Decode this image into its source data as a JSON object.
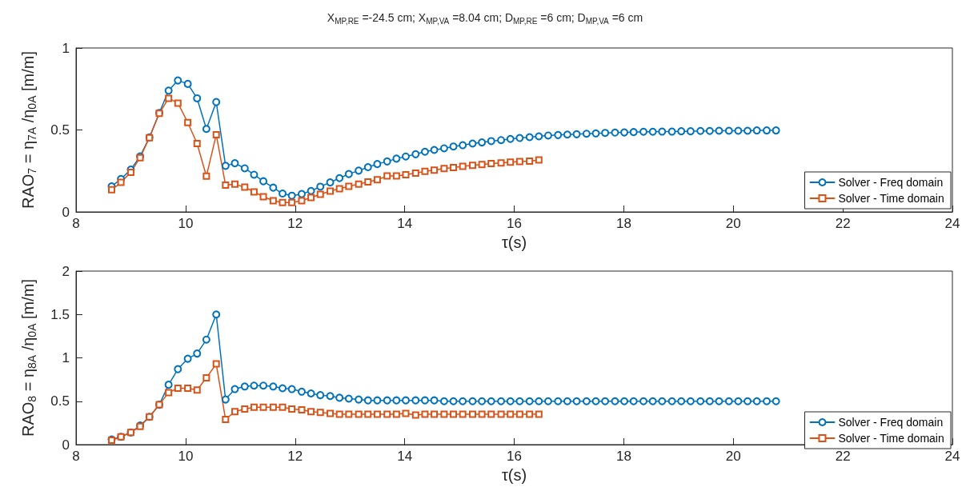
{
  "chart_data": [
    {
      "type": "line",
      "title": "X$_{MP,RE}$ =-24.5 cm; X$_{MP,VA}$ =8.04 cm; D$_{MP,RE}$ =6 cm; D$_{MP,VA}$ =6 cm",
      "xlabel": "τ(s)",
      "ylabel": "RAO$_{7}$ = η$_{7}$$_{A}$ /η$_{0}$$_{A}$ [m/m]",
      "x": [
        8.65,
        8.82,
        9.0,
        9.17,
        9.34,
        9.52,
        9.69,
        9.86,
        10.04,
        10.21,
        10.38,
        10.56,
        10.73,
        10.9,
        11.08,
        11.25,
        11.42,
        11.6,
        11.77,
        11.94,
        12.12,
        12.29,
        12.46,
        12.64,
        12.81,
        12.98,
        13.16,
        13.33,
        13.5,
        13.68,
        13.85,
        14.02,
        14.2,
        14.37,
        14.54,
        14.72,
        14.89,
        15.06,
        15.24,
        15.41,
        15.58,
        15.76,
        15.93,
        16.1,
        16.28,
        16.45,
        16.62,
        16.8,
        16.97,
        17.14,
        17.32,
        17.49,
        17.66,
        17.84,
        18.01,
        18.18,
        18.36,
        18.53,
        18.7,
        18.88,
        19.05,
        19.22,
        19.4,
        19.57,
        19.74,
        19.92,
        20.09,
        20.26,
        20.43,
        20.61,
        20.78
      ],
      "xlim": [
        8,
        24
      ],
      "xticks": [
        8,
        10,
        12,
        14,
        16,
        18,
        20,
        22,
        24
      ],
      "ylim": [
        0,
        1
      ],
      "yticks": [
        0,
        0.5,
        1
      ],
      "grid": false,
      "legend": "bottom right",
      "line_style": "solid",
      "series": [
        {
          "name": "Solver - Freq domain",
          "color": "#0072bd",
          "marker": "circle",
          "values": [
            0.156,
            0.201,
            0.258,
            0.339,
            0.455,
            0.604,
            0.74,
            0.802,
            0.781,
            0.693,
            0.506,
            0.67,
            0.281,
            0.297,
            0.266,
            0.227,
            0.187,
            0.148,
            0.112,
            0.099,
            0.109,
            0.128,
            0.154,
            0.18,
            0.206,
            0.231,
            0.252,
            0.273,
            0.292,
            0.308,
            0.325,
            0.338,
            0.352,
            0.367,
            0.378,
            0.388,
            0.399,
            0.407,
            0.417,
            0.424,
            0.432,
            0.438,
            0.445,
            0.451,
            0.456,
            0.461,
            0.466,
            0.469,
            0.472,
            0.474,
            0.477,
            0.479,
            0.482,
            0.484,
            0.485,
            0.487,
            0.489,
            0.489,
            0.49,
            0.49,
            0.492,
            0.492,
            0.494,
            0.494,
            0.495,
            0.495,
            0.495,
            0.495,
            0.497,
            0.497,
            0.497
          ]
        },
        {
          "name": "Solver - Time domain",
          "color": "#d95319",
          "marker": "square",
          "x": [
            8.65,
            8.82,
            9.0,
            9.17,
            9.34,
            9.52,
            9.69,
            9.86,
            10.04,
            10.21,
            10.38,
            10.56,
            10.73,
            10.9,
            11.08,
            11.25,
            11.42,
            11.6,
            11.77,
            11.94,
            12.12,
            12.29,
            12.46,
            12.64,
            12.81,
            12.98,
            13.16,
            13.33,
            13.5,
            13.68,
            13.85,
            14.02,
            14.2,
            14.37,
            14.54,
            14.72,
            14.89,
            15.06,
            15.24,
            15.41,
            15.58,
            15.76,
            15.93,
            16.1,
            16.28,
            16.45
          ],
          "values": [
            0.135,
            0.18,
            0.242,
            0.331,
            0.453,
            0.601,
            0.693,
            0.664,
            0.545,
            0.417,
            0.218,
            0.471,
            0.164,
            0.169,
            0.151,
            0.122,
            0.093,
            0.068,
            0.057,
            0.057,
            0.068,
            0.088,
            0.107,
            0.127,
            0.141,
            0.156,
            0.17,
            0.183,
            0.196,
            0.219,
            0.219,
            0.227,
            0.237,
            0.247,
            0.255,
            0.265,
            0.271,
            0.278,
            0.284,
            0.289,
            0.295,
            0.299,
            0.304,
            0.307,
            0.31,
            0.317
          ]
        }
      ]
    },
    {
      "type": "line",
      "xlabel": "τ(s)",
      "ylabel": "RAO$_{8}$ = η$_{8}$$_{A}$ /η$_{0}$$_{A}$ [m/m]",
      "x": [
        8.65,
        8.82,
        9.0,
        9.17,
        9.34,
        9.52,
        9.69,
        9.86,
        10.04,
        10.21,
        10.38,
        10.56,
        10.73,
        10.9,
        11.08,
        11.25,
        11.42,
        11.6,
        11.77,
        11.94,
        12.12,
        12.29,
        12.46,
        12.64,
        12.81,
        12.98,
        13.16,
        13.33,
        13.5,
        13.68,
        13.85,
        14.02,
        14.2,
        14.37,
        14.54,
        14.72,
        14.89,
        15.06,
        15.24,
        15.41,
        15.58,
        15.76,
        15.93,
        16.1,
        16.28,
        16.45,
        16.62,
        16.8,
        16.97,
        17.14,
        17.32,
        17.49,
        17.66,
        17.84,
        18.01,
        18.18,
        18.36,
        18.53,
        18.7,
        18.88,
        19.05,
        19.22,
        19.4,
        19.57,
        19.74,
        19.92,
        20.09,
        20.26,
        20.43,
        20.61,
        20.78
      ],
      "xlim": [
        8,
        24
      ],
      "xticks": [
        8,
        10,
        12,
        14,
        16,
        18,
        20,
        22,
        24
      ],
      "ylim": [
        0,
        2
      ],
      "yticks": [
        0,
        0.5,
        1,
        1.5,
        2
      ],
      "grid": false,
      "legend": "bottom right",
      "line_style": "solid",
      "series": [
        {
          "name": "Solver - Freq domain",
          "color": "#0072bd",
          "marker": "circle",
          "values": [
            0.06,
            0.09,
            0.14,
            0.22,
            0.32,
            0.46,
            0.69,
            0.87,
            0.99,
            1.05,
            1.21,
            1.5,
            0.52,
            0.64,
            0.67,
            0.68,
            0.68,
            0.67,
            0.65,
            0.64,
            0.61,
            0.59,
            0.57,
            0.56,
            0.54,
            0.53,
            0.52,
            0.51,
            0.51,
            0.51,
            0.51,
            0.51,
            0.51,
            0.51,
            0.51,
            0.5,
            0.5,
            0.5,
            0.5,
            0.5,
            0.5,
            0.5,
            0.5,
            0.5,
            0.5,
            0.5,
            0.5,
            0.5,
            0.5,
            0.5,
            0.5,
            0.5,
            0.5,
            0.5,
            0.5,
            0.5,
            0.5,
            0.5,
            0.5,
            0.5,
            0.5,
            0.5,
            0.5,
            0.5,
            0.5,
            0.5,
            0.5,
            0.5,
            0.5,
            0.5,
            0.5
          ]
        },
        {
          "name": "Solver - Time domain",
          "color": "#d95319",
          "marker": "square",
          "x": [
            8.65,
            8.82,
            9.0,
            9.17,
            9.34,
            9.52,
            9.69,
            9.86,
            10.04,
            10.21,
            10.38,
            10.56,
            10.73,
            10.9,
            11.08,
            11.25,
            11.42,
            11.6,
            11.77,
            11.94,
            12.12,
            12.29,
            12.46,
            12.64,
            12.81,
            12.98,
            13.16,
            13.33,
            13.5,
            13.68,
            13.85,
            14.02,
            14.2,
            14.37,
            14.54,
            14.72,
            14.89,
            15.06,
            15.24,
            15.41,
            15.58,
            15.76,
            15.93,
            16.1,
            16.28,
            16.45
          ],
          "values": [
            0.05,
            0.09,
            0.14,
            0.21,
            0.32,
            0.46,
            0.6,
            0.65,
            0.65,
            0.63,
            0.77,
            0.93,
            0.29,
            0.38,
            0.41,
            0.43,
            0.43,
            0.43,
            0.43,
            0.41,
            0.4,
            0.38,
            0.37,
            0.36,
            0.35,
            0.35,
            0.35,
            0.35,
            0.35,
            0.35,
            0.35,
            0.36,
            0.34,
            0.35,
            0.35,
            0.35,
            0.35,
            0.35,
            0.35,
            0.35,
            0.35,
            0.35,
            0.35,
            0.35,
            0.35,
            0.35
          ]
        }
      ]
    }
  ]
}
